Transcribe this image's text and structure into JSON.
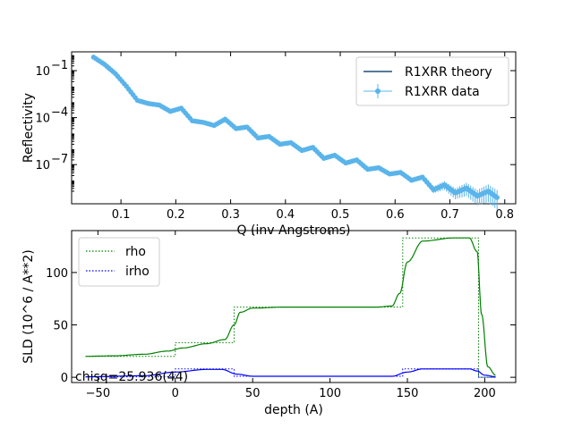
{
  "chart_data": [
    {
      "type": "scatter",
      "xlabel": "Q (inv Angstroms)",
      "ylabel": "Reflectivity",
      "xlim": [
        0.01,
        0.82
      ],
      "ylim_log10": [
        -9.5,
        0.2
      ],
      "y_scale": "log",
      "x_ticks": [
        "0.1",
        "0.2",
        "0.3",
        "0.4",
        "0.5",
        "0.6",
        "0.7",
        "0.8"
      ],
      "x_tick_values": [
        0.1,
        0.2,
        0.3,
        0.4,
        0.5,
        0.6,
        0.7,
        0.8
      ],
      "y_ticks": [
        {
          "base": "10",
          "exp": "−1",
          "value": -1
        },
        {
          "base": "10",
          "exp": "−4",
          "value": -4
        },
        {
          "base": "10",
          "exp": "−7",
          "value": -7
        }
      ],
      "legend_position": "top-right",
      "colors": {
        "theory": "#1f4e79",
        "data": "#5ab4ea"
      },
      "series": [
        {
          "name": "R1XRR theory",
          "style": "line",
          "x": [
            0.05,
            0.07,
            0.09,
            0.11,
            0.13,
            0.15,
            0.17,
            0.19,
            0.21,
            0.23,
            0.25,
            0.27,
            0.29,
            0.31,
            0.33,
            0.35,
            0.37,
            0.39,
            0.41,
            0.43,
            0.45,
            0.47,
            0.49,
            0.51,
            0.53,
            0.55,
            0.57,
            0.59,
            0.61,
            0.63,
            0.65,
            0.67,
            0.69,
            0.71,
            0.73,
            0.75,
            0.77,
            0.79
          ],
          "log10_y": [
            -0.14,
            -0.6,
            -1.2,
            -2.0,
            -2.9,
            -3.1,
            -3.2,
            -3.6,
            -3.4,
            -4.2,
            -4.3,
            -4.5,
            -4.1,
            -4.7,
            -4.6,
            -5.3,
            -5.2,
            -5.7,
            -5.6,
            -6.1,
            -5.9,
            -6.6,
            -6.4,
            -6.9,
            -6.7,
            -7.3,
            -7.2,
            -7.6,
            -7.5,
            -8.0,
            -7.8,
            -8.6,
            -8.3,
            -8.8,
            -8.5,
            -9.0,
            -8.7,
            -9.2
          ]
        },
        {
          "name": "R1XRR data",
          "style": "errorbar-points",
          "x": [
            0.05,
            0.07,
            0.09,
            0.11,
            0.13,
            0.15,
            0.17,
            0.19,
            0.21,
            0.23,
            0.25,
            0.27,
            0.29,
            0.31,
            0.33,
            0.35,
            0.37,
            0.39,
            0.41,
            0.43,
            0.45,
            0.47,
            0.49,
            0.51,
            0.53,
            0.55,
            0.57,
            0.59,
            0.61,
            0.63,
            0.65,
            0.67,
            0.69,
            0.71,
            0.73,
            0.75,
            0.77,
            0.79
          ],
          "log10_y": [
            -0.14,
            -0.6,
            -1.2,
            -2.0,
            -2.9,
            -3.1,
            -3.2,
            -3.6,
            -3.4,
            -4.2,
            -4.3,
            -4.5,
            -4.1,
            -4.7,
            -4.6,
            -5.3,
            -5.2,
            -5.7,
            -5.6,
            -6.1,
            -5.9,
            -6.6,
            -6.4,
            -6.9,
            -6.7,
            -7.3,
            -7.2,
            -7.6,
            -7.5,
            -8.0,
            -7.8,
            -8.6,
            -8.3,
            -8.8,
            -8.5,
            -9.0,
            -8.7,
            -9.2
          ]
        }
      ]
    },
    {
      "type": "line",
      "xlabel": "depth (A)",
      "ylabel": "SLD (10^6 / A**2)",
      "xlim": [
        -67,
        220
      ],
      "ylim": [
        -5,
        140
      ],
      "x_ticks": [
        "−50",
        "0",
        "50",
        "100",
        "150",
        "200"
      ],
      "x_tick_values": [
        -50,
        0,
        50,
        100,
        150,
        200
      ],
      "y_ticks": [
        "0",
        "50",
        "100"
      ],
      "y_tick_values": [
        0,
        50,
        100
      ],
      "legend_position": "top-left",
      "annotation": "chisq=25.936(44)",
      "colors": {
        "rho": "#008000",
        "irho": "#0000ff"
      },
      "series": [
        {
          "name": "rho",
          "style": "line",
          "x": [
            -58,
            -40,
            -20,
            -5,
            5,
            20,
            32,
            38,
            42,
            50,
            70,
            100,
            130,
            140,
            145,
            150,
            160,
            180,
            190,
            195,
            198,
            202,
            207
          ],
          "y": [
            20,
            20.5,
            22,
            25,
            28,
            32,
            36,
            50,
            62,
            66,
            67,
            67,
            67,
            68,
            80,
            110,
            130,
            133,
            133,
            120,
            60,
            10,
            2
          ]
        },
        {
          "name": "rho",
          "style": "step",
          "x": [
            -58,
            0,
            0,
            38,
            38,
            147,
            147,
            196,
            196,
            207
          ],
          "y": [
            20,
            20,
            33,
            33,
            67,
            67,
            133,
            133,
            0,
            0
          ]
        },
        {
          "name": "irho",
          "style": "line",
          "x": [
            -58,
            -20,
            0,
            20,
            30,
            40,
            50,
            100,
            140,
            150,
            160,
            190,
            195,
            200,
            207
          ],
          "y": [
            0.5,
            1.5,
            5,
            7.5,
            7.5,
            3,
            1,
            1,
            1,
            5,
            8,
            8,
            6,
            2,
            0.5
          ]
        },
        {
          "name": "irho",
          "style": "step",
          "x": [
            -58,
            0,
            0,
            38,
            38,
            147,
            147,
            196,
            196,
            207
          ],
          "y": [
            0.5,
            0.5,
            8,
            8,
            1,
            1,
            8,
            8,
            0,
            0
          ]
        }
      ]
    }
  ]
}
